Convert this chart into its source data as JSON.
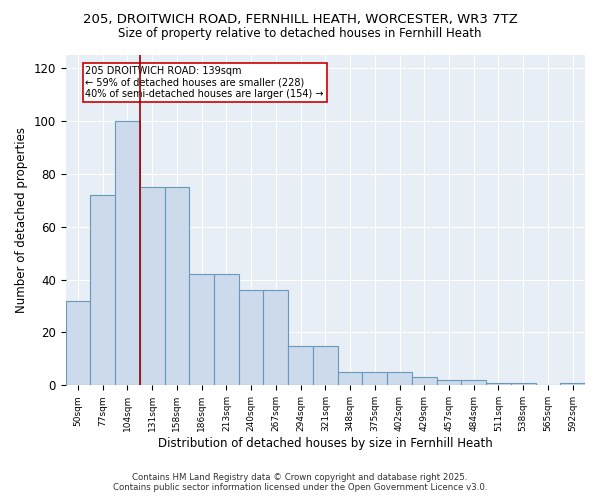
{
  "title": "205, DROITWICH ROAD, FERNHILL HEATH, WORCESTER, WR3 7TZ",
  "subtitle": "Size of property relative to detached houses in Fernhill Heath",
  "xlabel": "Distribution of detached houses by size in Fernhill Heath",
  "ylabel": "Number of detached properties",
  "bin_labels": [
    "50sqm",
    "77sqm",
    "104sqm",
    "131sqm",
    "158sqm",
    "186sqm",
    "213sqm",
    "240sqm",
    "267sqm",
    "294sqm",
    "321sqm",
    "348sqm",
    "375sqm",
    "402sqm",
    "429sqm",
    "457sqm",
    "484sqm",
    "511sqm",
    "538sqm",
    "565sqm",
    "592sqm"
  ],
  "bar_values": [
    32,
    72,
    100,
    75,
    75,
    42,
    42,
    36,
    36,
    15,
    15,
    5,
    5,
    5,
    3,
    2,
    2,
    1,
    1,
    0,
    1
  ],
  "bar_color": "#ccdaeb",
  "bar_edge_color": "#6699bb",
  "red_line_x": 2.5,
  "annotation_text": "205 DROITWICH ROAD: 139sqm\n← 59% of detached houses are smaller (228)\n40% of semi-detached houses are larger (154) →",
  "annotation_box_color": "white",
  "annotation_box_edge_color": "#cc0000",
  "red_line_color": "#990000",
  "ylim": [
    0,
    125
  ],
  "yticks": [
    0,
    20,
    40,
    60,
    80,
    100,
    120
  ],
  "background_color": "#e8eef5",
  "footer_line1": "Contains HM Land Registry data © Crown copyright and database right 2025.",
  "footer_line2": "Contains public sector information licensed under the Open Government Licence v3.0."
}
